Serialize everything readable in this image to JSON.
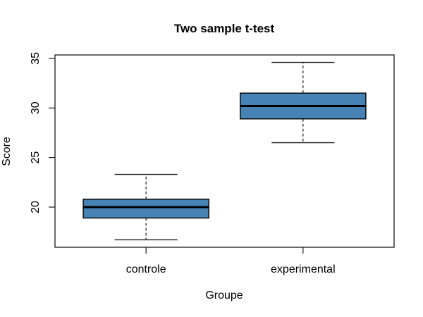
{
  "chart_data": {
    "type": "boxplot",
    "title": "Two sample t-test",
    "xlabel": "Groupe",
    "ylabel": "Score",
    "categories": [
      "controle",
      "experimental"
    ],
    "series": [
      {
        "name": "controle",
        "whisker_low": 16.7,
        "q1": 18.9,
        "median": 20.0,
        "q3": 20.8,
        "whisker_high": 23.3
      },
      {
        "name": "experimental",
        "whisker_low": 26.5,
        "q1": 28.9,
        "median": 30.2,
        "q3": 31.5,
        "whisker_high": 34.6
      }
    ],
    "y_ticks": [
      20,
      25,
      30,
      35
    ],
    "ylim": [
      15.95,
      35.35
    ],
    "xlim": [
      0.42,
      2.58
    ],
    "x_positions": [
      1,
      2
    ],
    "box_width_units": 0.8,
    "cap_width_units": 0.4,
    "grid": "off",
    "legend": "none",
    "colors": {
      "box_fill": "#4682B4",
      "box_border": "#000000",
      "median": "#000000",
      "whisker": "#1a1a1a",
      "frame": "#1a1a1a",
      "text": "#000000",
      "background": "#ffffff"
    }
  }
}
